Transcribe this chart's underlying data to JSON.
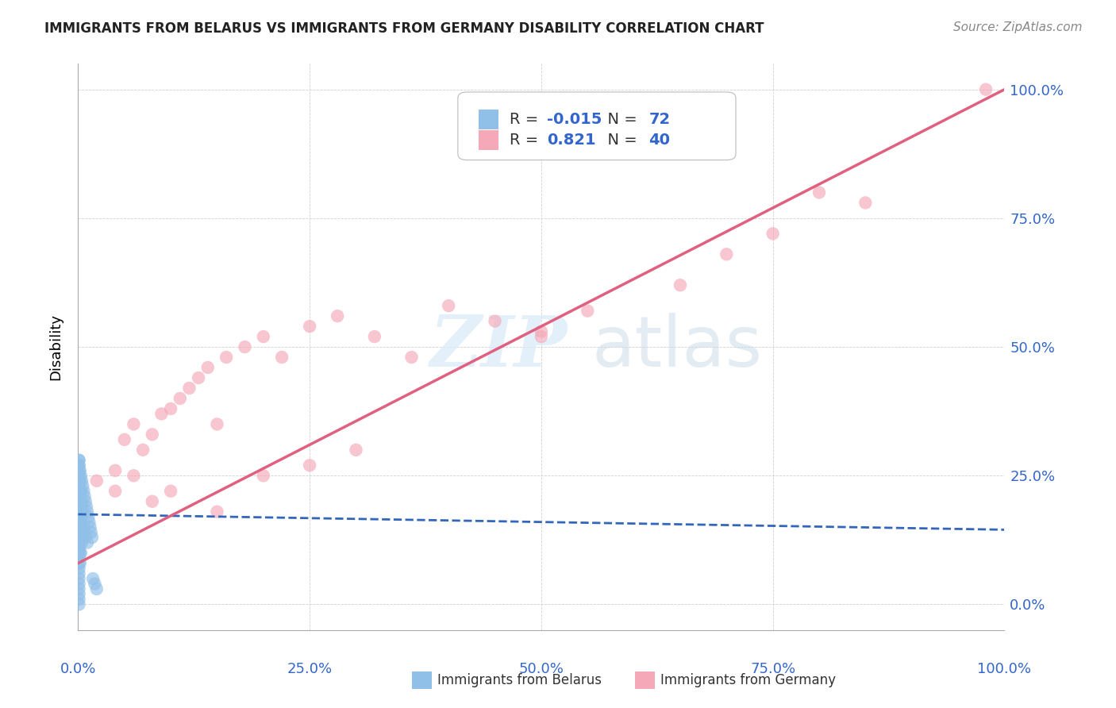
{
  "title": "IMMIGRANTS FROM BELARUS VS IMMIGRANTS FROM GERMANY DISABILITY CORRELATION CHART",
  "source": "Source: ZipAtlas.com",
  "ylabel": "Disability",
  "xlim": [
    0.0,
    1.0
  ],
  "ylim": [
    -0.05,
    1.05
  ],
  "x_ticks": [
    0.0,
    0.25,
    0.5,
    0.75,
    1.0
  ],
  "y_ticks": [
    0.0,
    0.25,
    0.5,
    0.75,
    1.0
  ],
  "x_tick_labels": [
    "0.0%",
    "25.0%",
    "50.0%",
    "75.0%",
    "100.0%"
  ],
  "y_tick_labels_right": [
    "0.0%",
    "25.0%",
    "50.0%",
    "75.0%",
    "100.0%"
  ],
  "belarus_color": "#90bfe8",
  "germany_color": "#f4a8b8",
  "belarus_line_color": "#3366bb",
  "germany_line_color": "#e06080",
  "R_belarus": -0.015,
  "N_belarus": 72,
  "R_germany": 0.821,
  "N_germany": 40,
  "watermark_zip": "ZIP",
  "watermark_atlas": "atlas",
  "legend_label_1": "Immigrants from Belarus",
  "legend_label_2": "Immigrants from Germany",
  "belarus_points_x": [
    0.001,
    0.001,
    0.001,
    0.001,
    0.001,
    0.001,
    0.001,
    0.001,
    0.001,
    0.001,
    0.001,
    0.001,
    0.001,
    0.001,
    0.001,
    0.001,
    0.001,
    0.001,
    0.001,
    0.001,
    0.002,
    0.002,
    0.002,
    0.002,
    0.002,
    0.002,
    0.002,
    0.002,
    0.002,
    0.002,
    0.003,
    0.003,
    0.003,
    0.003,
    0.003,
    0.003,
    0.004,
    0.004,
    0.004,
    0.004,
    0.005,
    0.005,
    0.005,
    0.006,
    0.006,
    0.007,
    0.007,
    0.008,
    0.008,
    0.009,
    0.01,
    0.01,
    0.011,
    0.012,
    0.013,
    0.014,
    0.015,
    0.016,
    0.018,
    0.02,
    0.001,
    0.001,
    0.001,
    0.001,
    0.001,
    0.001,
    0.001,
    0.001,
    0.001,
    0.001,
    0.001,
    0.001
  ],
  "belarus_points_y": [
    0.27,
    0.25,
    0.24,
    0.22,
    0.21,
    0.2,
    0.19,
    0.18,
    0.17,
    0.16,
    0.15,
    0.14,
    0.13,
    0.12,
    0.11,
    0.1,
    0.09,
    0.08,
    0.07,
    0.06,
    0.26,
    0.24,
    0.22,
    0.2,
    0.18,
    0.16,
    0.14,
    0.12,
    0.1,
    0.08,
    0.25,
    0.22,
    0.19,
    0.16,
    0.13,
    0.1,
    0.24,
    0.2,
    0.16,
    0.12,
    0.23,
    0.18,
    0.13,
    0.22,
    0.15,
    0.21,
    0.14,
    0.2,
    0.13,
    0.19,
    0.18,
    0.12,
    0.17,
    0.16,
    0.15,
    0.14,
    0.13,
    0.05,
    0.04,
    0.03,
    0.28,
    0.05,
    0.04,
    0.03,
    0.02,
    0.01,
    0.0,
    0.28,
    0.27,
    0.26,
    0.25,
    0.24
  ],
  "germany_points_x": [
    0.02,
    0.04,
    0.05,
    0.06,
    0.07,
    0.08,
    0.09,
    0.1,
    0.11,
    0.12,
    0.13,
    0.14,
    0.15,
    0.16,
    0.18,
    0.2,
    0.22,
    0.25,
    0.28,
    0.32,
    0.36,
    0.4,
    0.45,
    0.5,
    0.55,
    0.65,
    0.7,
    0.75,
    0.8,
    0.85,
    0.04,
    0.06,
    0.08,
    0.1,
    0.15,
    0.2,
    0.25,
    0.3,
    0.98,
    0.5
  ],
  "germany_points_y": [
    0.24,
    0.26,
    0.32,
    0.35,
    0.3,
    0.33,
    0.37,
    0.38,
    0.4,
    0.42,
    0.44,
    0.46,
    0.35,
    0.48,
    0.5,
    0.52,
    0.48,
    0.54,
    0.56,
    0.52,
    0.48,
    0.58,
    0.55,
    0.53,
    0.57,
    0.62,
    0.68,
    0.72,
    0.8,
    0.78,
    0.22,
    0.25,
    0.2,
    0.22,
    0.18,
    0.25,
    0.27,
    0.3,
    1.0,
    0.52
  ],
  "bel_line_x": [
    0.0,
    1.0
  ],
  "bel_line_y": [
    0.175,
    0.145
  ],
  "ger_line_x": [
    0.0,
    1.0
  ],
  "ger_line_y": [
    0.08,
    1.0
  ]
}
